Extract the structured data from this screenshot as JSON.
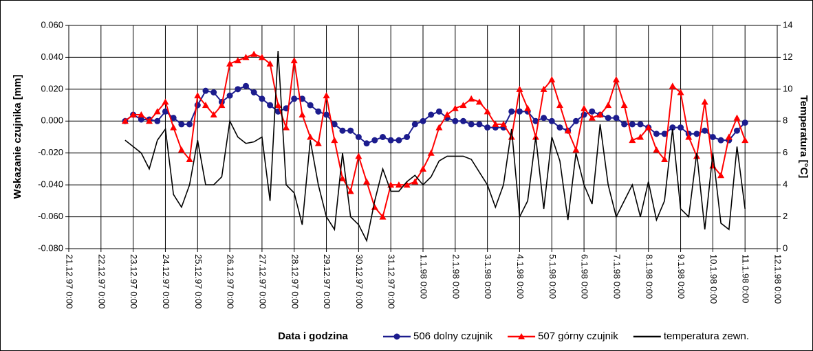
{
  "chart_data": {
    "type": "line",
    "y_label": "Wskazanie czujnika  [mm]",
    "y2_label": "Temperatura [°C]",
    "x_label": "Data i godzina",
    "x": [
      "22.12.97 18:00",
      "23.12.97 0:00",
      "23.12.97 6:00",
      "23.12.97 12:00",
      "23.12.97 18:00",
      "24.12.97 0:00",
      "24.12.97 6:00",
      "24.12.97 12:00",
      "24.12.97 18:00",
      "25.12.97 0:00",
      "25.12.97 6:00",
      "25.12.97 12:00",
      "25.12.97 18:00",
      "26.12.97 0:00",
      "26.12.97 6:00",
      "26.12.97 12:00",
      "26.12.97 18:00",
      "27.12.97 0:00",
      "27.12.97 6:00",
      "27.12.97 12:00",
      "27.12.97 18:00",
      "28.12.97 0:00",
      "28.12.97 6:00",
      "28.12.97 12:00",
      "28.12.97 18:00",
      "29.12.97 0:00",
      "29.12.97 6:00",
      "29.12.97 12:00",
      "29.12.97 18:00",
      "30.12.97 0:00",
      "30.12.97 6:00",
      "30.12.97 12:00",
      "30.12.97 18:00",
      "31.12.97 0:00",
      "31.12.97 6:00",
      "31.12.97 12:00",
      "31.12.97 18:00",
      "1.1.98 0:00",
      "1.1.98 6:00",
      "1.1.98 12:00",
      "1.1.98 18:00",
      "2.1.98 0:00",
      "2.1.98 6:00",
      "2.1.98 12:00",
      "2.1.98 18:00",
      "3.1.98 0:00",
      "3.1.98 6:00",
      "3.1.98 12:00",
      "3.1.98 18:00",
      "4.1.98 0:00",
      "4.1.98 6:00",
      "4.1.98 12:00",
      "4.1.98 18:00",
      "5.1.98 0:00",
      "5.1.98 6:00",
      "5.1.98 12:00",
      "5.1.98 18:00",
      "6.1.98 0:00",
      "6.1.98 6:00",
      "6.1.98 12:00",
      "6.1.98 18:00",
      "7.1.98 0:00",
      "7.1.98 6:00",
      "7.1.98 12:00",
      "7.1.98 18:00",
      "8.1.98 0:00",
      "8.1.98 6:00",
      "8.1.98 12:00",
      "8.1.98 18:00",
      "9.1.98 0:00",
      "9.1.98 6:00",
      "9.1.98 12:00",
      "9.1.98 18:00",
      "10.1.98 0:00",
      "10.1.98 6:00",
      "10.1.98 12:00",
      "10.1.98 18:00",
      "11.1.98 0:00"
    ],
    "series": [
      {
        "name": "506 dolny czujnik",
        "color": "#1c1c8e",
        "marker": "circle",
        "values": [
          0.0,
          0.004,
          0.001,
          0.001,
          0.0,
          0.006,
          0.002,
          -0.002,
          -0.002,
          0.01,
          0.019,
          0.018,
          0.012,
          0.016,
          0.02,
          0.022,
          0.018,
          0.014,
          0.01,
          0.006,
          0.008,
          0.014,
          0.014,
          0.01,
          0.006,
          0.004,
          -0.002,
          -0.006,
          -0.006,
          -0.01,
          -0.014,
          -0.012,
          -0.01,
          -0.012,
          -0.012,
          -0.01,
          -0.002,
          0.0,
          0.004,
          0.006,
          0.002,
          0.0,
          0.0,
          -0.002,
          -0.002,
          -0.004,
          -0.004,
          -0.004,
          0.006,
          0.006,
          0.006,
          0.0,
          0.002,
          0.0,
          -0.004,
          -0.006,
          0.0,
          0.004,
          0.006,
          0.004,
          0.002,
          0.002,
          -0.002,
          -0.002,
          -0.002,
          -0.004,
          -0.008,
          -0.008,
          -0.004,
          -0.004,
          -0.008,
          -0.008,
          -0.006,
          -0.01,
          -0.012,
          -0.012,
          -0.006,
          -0.001
        ]
      },
      {
        "name": "507 górny czujnik",
        "color": "#ff0000",
        "marker": "triangle",
        "values": [
          0.0,
          0.004,
          0.004,
          0.0,
          0.006,
          0.012,
          -0.004,
          -0.018,
          -0.024,
          0.016,
          0.01,
          0.004,
          0.01,
          0.036,
          0.038,
          0.04,
          0.042,
          0.04,
          0.036,
          0.01,
          -0.004,
          0.038,
          0.004,
          -0.01,
          -0.014,
          0.016,
          -0.012,
          -0.036,
          -0.044,
          -0.022,
          -0.038,
          -0.054,
          -0.06,
          -0.04,
          -0.04,
          -0.04,
          -0.038,
          -0.03,
          -0.02,
          -0.004,
          0.004,
          0.008,
          0.01,
          0.014,
          0.012,
          0.006,
          -0.002,
          -0.002,
          -0.01,
          0.02,
          0.008,
          -0.01,
          0.02,
          0.026,
          0.01,
          -0.006,
          -0.018,
          0.008,
          0.002,
          0.004,
          0.01,
          0.026,
          0.01,
          -0.012,
          -0.01,
          -0.004,
          -0.018,
          -0.024,
          0.022,
          0.018,
          -0.01,
          -0.022,
          0.012,
          -0.028,
          -0.034,
          -0.01,
          0.002,
          -0.012
        ]
      },
      {
        "name": "temperatura zewn.",
        "color": "#000000",
        "marker": null,
        "axis": "y2",
        "values": [
          6.8,
          6.4,
          6.0,
          5.0,
          6.8,
          7.5,
          3.4,
          2.6,
          4.0,
          6.8,
          4.0,
          4.0,
          4.5,
          8.0,
          7.0,
          6.6,
          6.7,
          7.0,
          3.0,
          12.4,
          4.0,
          3.5,
          1.5,
          6.8,
          4.0,
          2.0,
          1.2,
          6.0,
          2.0,
          1.5,
          0.5,
          3.0,
          5.0,
          3.6,
          3.6,
          4.2,
          4.6,
          4.0,
          4.5,
          5.5,
          5.8,
          5.8,
          5.8,
          5.6,
          4.8,
          4.0,
          2.6,
          4.0,
          7.5,
          2.0,
          3.0,
          7.0,
          2.5,
          7.0,
          5.5,
          1.8,
          6.0,
          4.0,
          2.8,
          7.8,
          4.0,
          2.0,
          3.0,
          4.0,
          2.0,
          4.2,
          1.8,
          3.0,
          7.5,
          2.5,
          2.0,
          6.0,
          1.2,
          6.0,
          1.6,
          1.2,
          6.4,
          2.5
        ]
      }
    ],
    "xlim": [
      "21.12.97 0:00",
      "12.1.98 0:00"
    ],
    "xticks": [
      "21.12.97 0:00",
      "22.12.97 0:00",
      "23.12.97 0:00",
      "24.12.97 0:00",
      "25.12.97 0:00",
      "26.12.97 0:00",
      "27.12.97 0:00",
      "28.12.97 0:00",
      "29.12.97 0:00",
      "30.12.97 0:00",
      "31.12.97 0:00",
      "1.1.98 0:00",
      "2.1.98 0:00",
      "3.1.98 0:00",
      "4.1.98 0:00",
      "5.1.98 0:00",
      "6.1.98 0:00",
      "7.1.98 0:00",
      "8.1.98 0:00",
      "9.1.98 0:00",
      "10.1.98 0:00",
      "11.1.98 0:00",
      "12.1.98 0:00"
    ],
    "ylim": [
      -0.08,
      0.06
    ],
    "yticks": [
      {
        "value": -0.08,
        "label": "-0.080"
      },
      {
        "value": -0.06,
        "label": "-0.060"
      },
      {
        "value": -0.04,
        "label": "-0.040"
      },
      {
        "value": -0.02,
        "label": "-0.020"
      },
      {
        "value": 0,
        "label": "0.000"
      },
      {
        "value": 0.02,
        "label": "0.020"
      },
      {
        "value": 0.04,
        "label": "0.040"
      },
      {
        "value": 0.06,
        "label": "0.060"
      }
    ],
    "y2lim": [
      0,
      14
    ],
    "y2ticks": [
      0,
      2,
      4,
      6,
      8,
      10,
      12,
      14
    ],
    "grid": true,
    "legend": "bottom"
  }
}
